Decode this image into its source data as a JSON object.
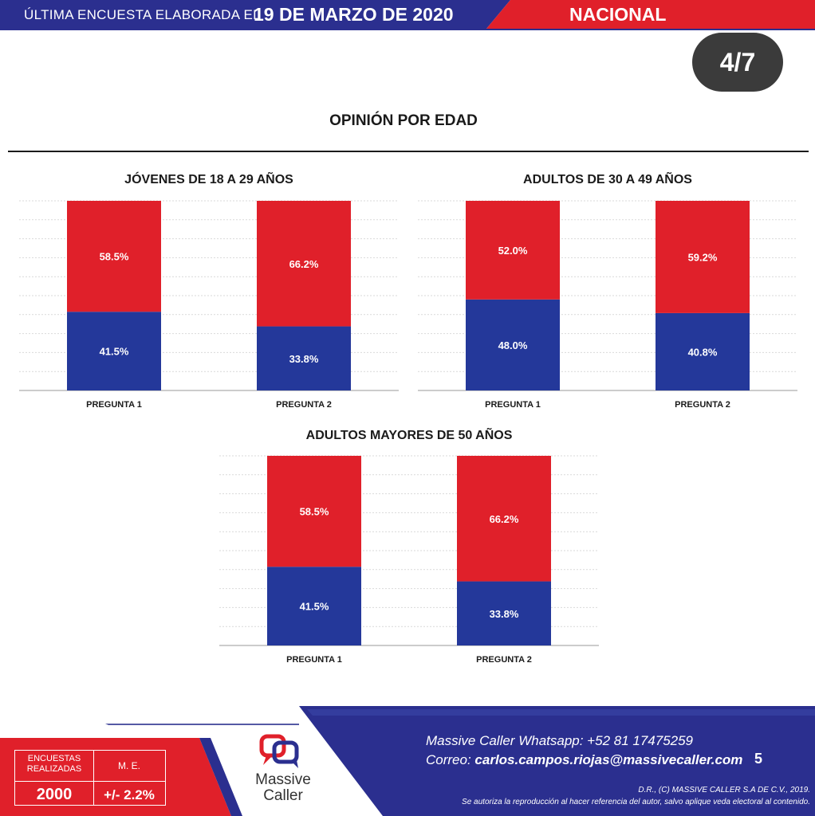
{
  "header": {
    "prefix": "ÚLTIMA ENCUESTA ELABORADA EL",
    "date": "19 DE MARZO DE 2020",
    "region": "NACIONAL"
  },
  "page_badge": "4/7",
  "main_title": "OPINIÓN POR EDAD",
  "colors": {
    "red": "#e0202a",
    "blue": "#24389a",
    "dark_blue": "#2b2f8f"
  },
  "chart_data": [
    {
      "type": "bar",
      "stacked": true,
      "percent": true,
      "title": "JÓVENES DE 18 A 29 AÑOS",
      "categories": [
        "PREGUNTA 1",
        "PREGUNTA 2"
      ],
      "series": [
        {
          "values": [
            41.5,
            33.8
          ],
          "labels": [
            "41.5%",
            "33.8%"
          ],
          "color": "#24389a"
        },
        {
          "values": [
            58.5,
            66.2
          ],
          "labels": [
            "58.5%",
            "66.2%"
          ],
          "color": "#e0202a"
        }
      ],
      "ylim": [
        0,
        100
      ],
      "grid": true
    },
    {
      "type": "bar",
      "stacked": true,
      "percent": true,
      "title": "ADULTOS DE 30 A 49 AÑOS",
      "categories": [
        "PREGUNTA 1",
        "PREGUNTA 2"
      ],
      "series": [
        {
          "values": [
            48.0,
            40.8
          ],
          "labels": [
            "48.0%",
            "40.8%"
          ],
          "color": "#24389a"
        },
        {
          "values": [
            52.0,
            59.2
          ],
          "labels": [
            "52.0%",
            "59.2%"
          ],
          "color": "#e0202a"
        }
      ],
      "ylim": [
        0,
        100
      ],
      "grid": true
    },
    {
      "type": "bar",
      "stacked": true,
      "percent": true,
      "title": "ADULTOS MAYORES DE 50 AÑOS",
      "categories": [
        "PREGUNTA 1",
        "PREGUNTA 2"
      ],
      "series": [
        {
          "values": [
            41.5,
            33.8
          ],
          "labels": [
            "41.5%",
            "33.8%"
          ],
          "color": "#24389a"
        },
        {
          "values": [
            58.5,
            66.2
          ],
          "labels": [
            "58.5%",
            "66.2%"
          ],
          "color": "#e0202a"
        }
      ],
      "ylim": [
        0,
        100
      ],
      "grid": true
    }
  ],
  "footer": {
    "stats": {
      "label1": "ENCUESTAS REALIZADAS",
      "label2": "M. E.",
      "value1": "2000",
      "value2": "+/- 2.2%"
    },
    "logo_line1": "Massive",
    "logo_line2": "Caller",
    "contact_line1": "Massive Caller Whatsapp:  +52 81 17475259",
    "contact_label": "Correo: ",
    "contact_email": "carlos.campos.riojas@massivecaller.com",
    "page_number": "5",
    "legal_line1": "D.R., (C) MASSIVE CALLER S.A DE C.V., 2019.",
    "legal_line2": "Se autoriza la reproducción al hacer referencia del autor, salvo aplique veda electoral al contenido."
  }
}
